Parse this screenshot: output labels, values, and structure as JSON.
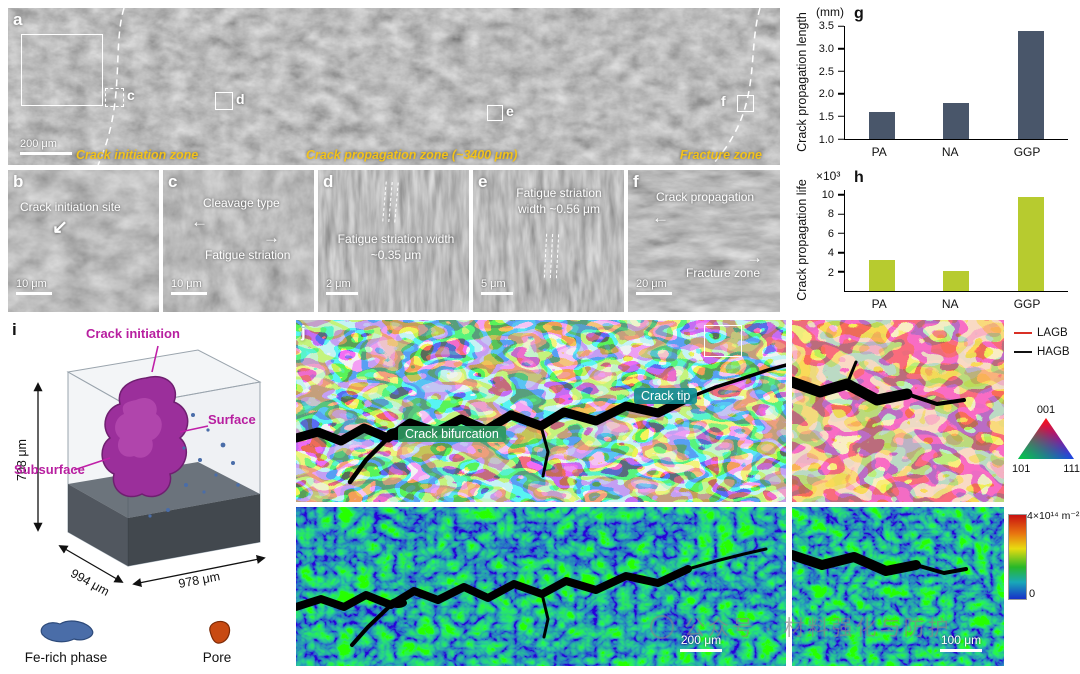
{
  "panel_a": {
    "letter": "a",
    "scale": "200 μm",
    "zone_initiation": "Crack initiation zone",
    "zone_propagation": "Crack propagation zone (~3400 μm)",
    "zone_fracture": "Fracture zone",
    "boxes": {
      "c": "c",
      "d": "d",
      "e": "e",
      "f": "f"
    }
  },
  "panel_b": {
    "letter": "b",
    "annotation": "Crack initiation site",
    "scale": "10 μm"
  },
  "panel_c": {
    "letter": "c",
    "top": "Cleavage type",
    "bottom": "Fatigue striation",
    "scale": "10 μm"
  },
  "panel_d": {
    "letter": "d",
    "annotation": "Fatigue striation width ~0.35 μm",
    "scale": "2 μm"
  },
  "panel_e": {
    "letter": "e",
    "annotation": "Fatigue striation width ~0.56 μm",
    "scale": "5 μm"
  },
  "panel_f": {
    "letter": "f",
    "top": "Crack propagation",
    "bottom": "Fracture zone",
    "scale": "20 μm"
  },
  "panel_i": {
    "letter": "i",
    "crack_initiation": "Crack initiation",
    "surface": "Surface",
    "subsurface": "Subsurface",
    "dim_height": "708 μm",
    "dim_left": "994 μm",
    "dim_right": "978 μm",
    "legend_fe": "Fe-rich phase",
    "legend_pore": "Pore",
    "crack_color": "#9b2f9b",
    "fe_color": "#4a6da8",
    "pore_color": "#c84a12"
  },
  "panel_j": {
    "letter": "j",
    "crack_bifurcation": "Crack bifurcation",
    "crack_tip": "Crack tip",
    "lagb": "LAGB",
    "hagb": "HAGB",
    "lagb_color": "#d93025",
    "hagb_color": "#111111",
    "ipf_001": "001",
    "ipf_101": "101",
    "ipf_111": "111",
    "colorbar_max": "4×10¹⁴ m⁻²",
    "colorbar_min": "0",
    "scale_main": "200 μm",
    "scale_inset": "100 μm",
    "bifurcation_chip_color": "#2e9860",
    "tip_chip_color": "#128e94"
  },
  "chart_data": [
    {
      "id": "g",
      "type": "bar",
      "letter": "g",
      "unit": "(mm)",
      "ylabel": "Crack propagation length",
      "categories": [
        "PA",
        "NA",
        "GGP"
      ],
      "values": [
        1.6,
        1.8,
        3.4
      ],
      "yticks": [
        "1.0",
        "1.5",
        "2.0",
        "2.5",
        "3.0",
        "3.5"
      ],
      "ymin": 1.0,
      "ymax": 3.5,
      "bar_color": "#49566a"
    },
    {
      "id": "h",
      "type": "bar",
      "letter": "h",
      "unit": "×10³",
      "ylabel": "Crack propagation life",
      "categories": [
        "PA",
        "NA",
        "GGP"
      ],
      "values": [
        3.2,
        2.1,
        9.8
      ],
      "yticks": [
        "2",
        "4",
        "6",
        "8",
        "10"
      ],
      "ymin": 0,
      "ymax": 10.5,
      "bar_color": "#b7cb2f"
    }
  ],
  "icons": {
    "arrow_left": "←",
    "arrow_right": "→",
    "arrow_down_left": "↙"
  },
  "watermark": "公众号 · 材料强化与防护"
}
